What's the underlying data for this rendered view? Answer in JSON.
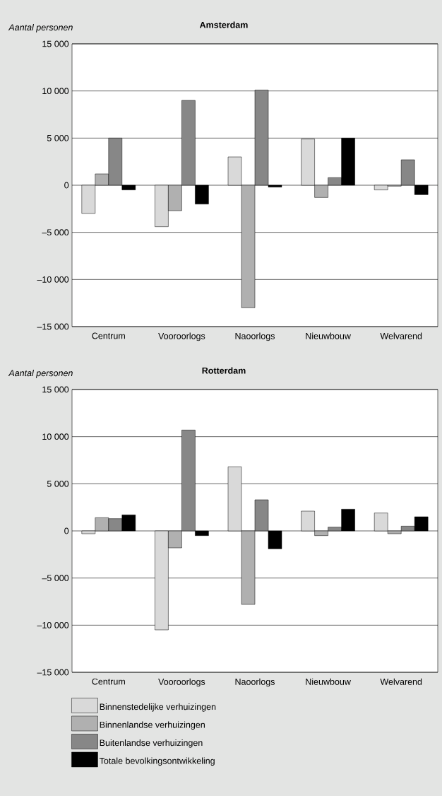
{
  "chart_data": [
    {
      "type": "bar",
      "title": "Amsterdam",
      "ylabel": "Aantal personen",
      "categories": [
        "Centrum",
        "Vooroorlogs",
        "Naoorlogs",
        "Nieuwbouw",
        "Welvarend"
      ],
      "series": [
        {
          "color": "#d9d9d9",
          "values": [
            -3000,
            -4400,
            3000,
            4900,
            -500
          ]
        },
        {
          "color": "#b0b0b0",
          "values": [
            1200,
            -2700,
            -13000,
            -1300,
            -100
          ]
        },
        {
          "color": "#878787",
          "values": [
            5000,
            9000,
            10100,
            800,
            2700
          ]
        },
        {
          "color": "#000000",
          "values": [
            -500,
            -2000,
            -200,
            5000,
            -1000
          ]
        }
      ],
      "ylim": [
        -15000,
        15000
      ],
      "yticks": [
        {
          "value": -15000,
          "label": "–15 000"
        },
        {
          "value": -10000,
          "label": "–10 000"
        },
        {
          "value": -5000,
          "label": "–5 000"
        },
        0,
        {
          "value": 5000,
          "label": "5 000"
        },
        {
          "value": 10000,
          "label": "10 000"
        },
        {
          "value": 15000,
          "label": "15 000"
        }
      ],
      "grid": "y",
      "legend": false
    },
    {
      "type": "bar",
      "title": "Rotterdam",
      "ylabel": "Aantal personen",
      "categories": [
        "Centrum",
        "Vooroorlogs",
        "Naoorlogs",
        "Nieuwbouw",
        "Welvarend"
      ],
      "series": [
        {
          "name": "Binnenstedelijke verhuizingen",
          "color": "#d9d9d9",
          "values": [
            -300,
            -10500,
            6800,
            2100,
            1900
          ]
        },
        {
          "name": "Binnenlandse verhuizingen",
          "color": "#b0b0b0",
          "values": [
            1400,
            -1800,
            -7800,
            -500,
            -300
          ]
        },
        {
          "name": "Buitenlandse verhuizingen",
          "color": "#878787",
          "values": [
            1300,
            10700,
            3300,
            400,
            500
          ]
        },
        {
          "name": "Totale bevolkingsontwikkeling",
          "color": "#000000",
          "values": [
            1700,
            -500,
            -1900,
            2300,
            1500
          ]
        }
      ],
      "ylim": [
        -15000,
        15000
      ],
      "yticks": [
        {
          "value": -15000,
          "label": "–15 000"
        },
        {
          "value": -10000,
          "label": "–10 000"
        },
        {
          "value": -5000,
          "label": "–5 000"
        },
        0,
        {
          "value": 5000,
          "label": "5 000"
        },
        {
          "value": 10000,
          "label": "10 000"
        },
        {
          "value": 15000,
          "label": "15 000"
        }
      ],
      "grid": "y",
      "legend": "bottom"
    }
  ]
}
